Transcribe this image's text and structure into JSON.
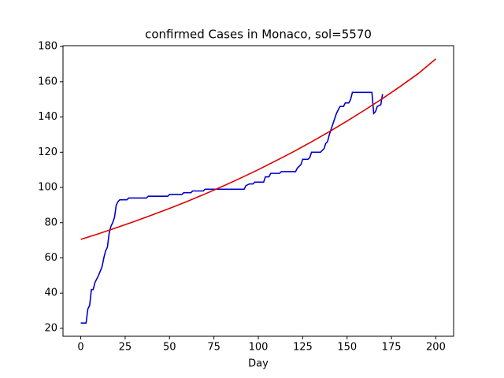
{
  "chart_data": {
    "type": "line",
    "title": "confirmed Cases in Monaco, sol=5570",
    "xlabel": "Day",
    "xlim": [
      -10,
      210
    ],
    "xticks": [
      0,
      25,
      50,
      75,
      100,
      125,
      150,
      175,
      200
    ],
    "ylim": [
      15.5,
      180.5
    ],
    "yticks": [
      20,
      40,
      60,
      80,
      100,
      120,
      140,
      160,
      180
    ],
    "grid": false,
    "series": [
      {
        "color": "#0000cc",
        "x": [
          0,
          3,
          4,
          5,
          6,
          7,
          8,
          10,
          12,
          13,
          14,
          15,
          16,
          17,
          18,
          19,
          20,
          21,
          22,
          26,
          27,
          37,
          38,
          49,
          50,
          57,
          58,
          62,
          63,
          69,
          70,
          92,
          93,
          95,
          97,
          98,
          103,
          104,
          106,
          107,
          112,
          113,
          121,
          122,
          124,
          125,
          128,
          129,
          130,
          135,
          137,
          138,
          139,
          140,
          141,
          142,
          143,
          144,
          145,
          146,
          148,
          149,
          151,
          152,
          153,
          164,
          165,
          166,
          167,
          169,
          170
        ],
        "values": [
          23,
          23,
          31,
          33,
          42,
          42,
          46,
          50,
          55,
          60,
          64,
          66,
          74,
          78,
          80,
          83,
          90,
          92,
          93,
          93,
          94,
          94,
          95,
          95,
          96,
          96,
          97,
          97,
          98,
          98,
          99,
          99,
          101,
          102,
          102,
          103,
          103,
          106,
          106,
          108,
          108,
          109,
          109,
          111,
          113,
          116,
          116,
          117,
          120,
          120,
          122,
          125,
          126,
          130,
          133,
          136,
          139,
          142,
          144,
          146,
          146,
          148,
          148,
          150,
          154,
          154,
          142,
          143,
          146,
          147,
          153
        ]
      },
      {
        "color": "#dd0000",
        "x": [
          0,
          10,
          20,
          30,
          40,
          50,
          60,
          70,
          80,
          90,
          100,
          110,
          120,
          130,
          140,
          150,
          160,
          170,
          180,
          190,
          200
        ],
        "values": [
          70.5,
          73.7,
          77.1,
          80.6,
          84.3,
          88.1,
          92.1,
          96.3,
          100.7,
          105.3,
          110.1,
          115.2,
          120.4,
          125.9,
          131.7,
          137.7,
          144.0,
          150.5,
          157.4,
          164.6,
          173
        ]
      }
    ]
  }
}
